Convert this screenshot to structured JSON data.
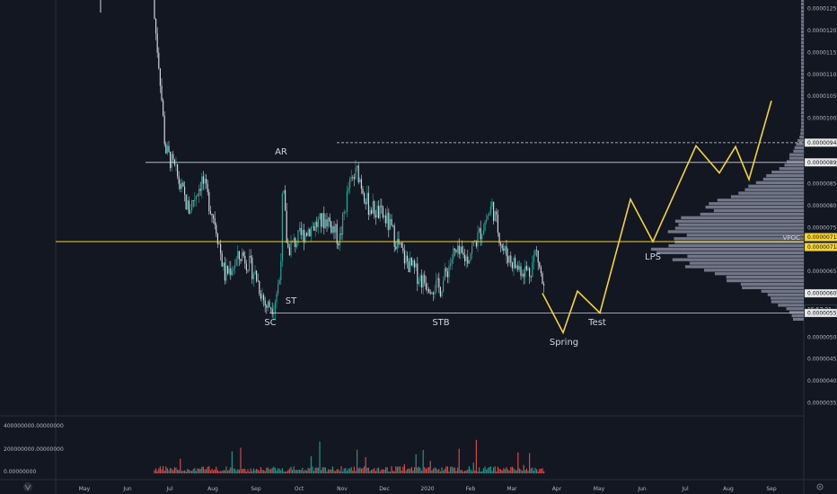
{
  "chart_data": {
    "type": "candlestick",
    "title": "",
    "x_tick_labels": [
      "May",
      "Jun",
      "Jul",
      "Aug",
      "Sep",
      "Oct",
      "Nov",
      "Dec",
      "2020",
      "Feb",
      "Mar",
      "Apr",
      "May",
      "Jun",
      "Jul",
      "Aug",
      "Sep"
    ],
    "y_tick_labels": [
      "0.00001250",
      "0.00001200",
      "0.00001150",
      "0.00001100",
      "0.00001050",
      "0.00001000",
      "0.00000850",
      "0.00000800",
      "0.00000750",
      "0.00000650",
      "0.00000550",
      "0.00000500",
      "0.00000450",
      "0.00000400",
      "0.00000350"
    ],
    "y_range": [
      3.2e-06,
      1.27e-05
    ],
    "price_tags": [
      {
        "label": "0.00000944",
        "value": 9.44e-06,
        "style": "light"
      },
      {
        "label": "0.00000899",
        "value": 8.99e-06,
        "style": "light"
      },
      {
        "label": "0.00000718",
        "value": 7.18e-06,
        "style": "yellow"
      },
      {
        "label": "0.00000718",
        "value": 7.18e-06,
        "style": "yellow"
      },
      {
        "label": "0.00000600",
        "value": 6e-06,
        "style": "light"
      },
      {
        "label": "15:57:21",
        "value": 5.78e-06,
        "style": "dark"
      },
      {
        "label": "0.00000555",
        "value": 5.55e-06,
        "style": "light"
      }
    ],
    "levels": {
      "ar_resistance": 8.99e-06,
      "dashed_high": 9.44e-06,
      "vpoc": 7.18e-06,
      "sc_support": 5.55e-06
    },
    "annotations": [
      {
        "label": "AR",
        "x_month": "Oct",
        "value": 9.25e-06
      },
      {
        "label": "SC",
        "x_month": "Sep",
        "value": 5.35e-06
      },
      {
        "label": "ST",
        "x_month": "Oct",
        "value": 5.85e-06
      },
      {
        "label": "STB",
        "x_month": "Feb",
        "value": 5.35e-06
      },
      {
        "label": "Spring",
        "x_month": "Apr",
        "value": 4.9e-06
      },
      {
        "label": "Test",
        "x_month": "Apr",
        "value": 5.35e-06
      },
      {
        "label": "LPS",
        "x_month": "Jun",
        "value": 6.85e-06
      },
      {
        "label": "VPOC",
        "x_month": "",
        "value": 7.3e-06
      }
    ],
    "projection_path": [
      6e-06,
      5.1e-06,
      6.05e-06,
      5.55e-06,
      8.15e-06,
      7.18e-06,
      9.37e-06,
      8.75e-06,
      9.35e-06,
      8.6e-06,
      1.04e-05
    ],
    "volume_axis_labels": [
      "400000000.00000000",
      "200000000.00000000",
      "0.00000000"
    ],
    "colors": {
      "background": "#131722",
      "up": "#26a69a",
      "down": "#ef5350",
      "annotation": "#f5d33a",
      "line": "#d1d4dc",
      "profile": "#7c8291"
    }
  }
}
